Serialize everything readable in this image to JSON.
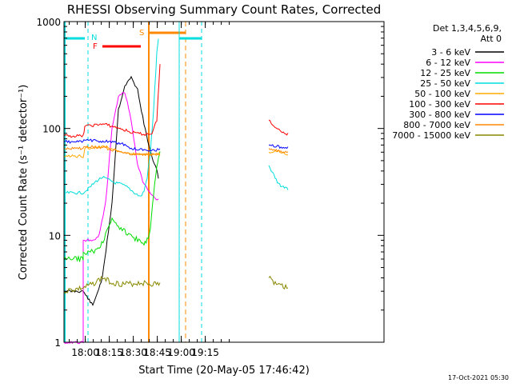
{
  "chart_data": {
    "type": "line",
    "title": "RHESSI Observing Summary Count Rates, Corrected",
    "xlabel": "Start Time (20-May-05 17:46:42)",
    "ylabel": "Corrected Count Rate (s⁻¹ detector⁻¹)",
    "yscale": "log",
    "ylim": [
      1,
      1000
    ],
    "xlim_min": [
      0,
      200
    ],
    "x_tick_labels": [
      "18:00",
      "18:15",
      "18:30",
      "18:45",
      "19:00",
      "19:15"
    ],
    "x_ticks_min": [
      13.3,
      28.3,
      43.3,
      58.3,
      73.3,
      88.3
    ],
    "y_tick_labels": [
      "1",
      "10",
      "100",
      "1000"
    ],
    "y_ticks": [
      1,
      10,
      100,
      1000
    ],
    "grid": false,
    "legend_header": [
      "Det 1,3,4,5,6,9,",
      "Att 0"
    ],
    "legend_position": "right",
    "footer_date": "17-Oct-2021 05:30",
    "annotations": {
      "night_label": "N",
      "flare_label": "F",
      "saa_label": "S"
    },
    "flags": {
      "night_intervals": [
        [
          0,
          15
        ]
      ],
      "flare_interval": [
        24,
        48
      ],
      "attenuator_interval": [
        53,
        76
      ]
    },
    "series": [
      {
        "name": "3 - 6 keV",
        "color": "#000000",
        "points": [
          [
            0,
            3
          ],
          [
            12,
            3
          ],
          [
            18,
            2.2
          ],
          [
            24,
            4
          ],
          [
            30,
            20
          ],
          [
            34,
            150
          ],
          [
            38,
            250
          ],
          [
            42,
            300
          ],
          [
            46,
            230
          ],
          [
            50,
            110
          ],
          [
            54,
            60
          ],
          [
            58,
            40
          ],
          [
            59,
            35
          ]
        ]
      },
      {
        "name": "6 - 12 keV",
        "color": "#ff00ff",
        "points": [
          [
            0,
            1
          ],
          [
            12,
            1
          ],
          [
            12,
            9
          ],
          [
            18,
            9
          ],
          [
            22,
            10
          ],
          [
            26,
            20
          ],
          [
            30,
            100
          ],
          [
            34,
            200
          ],
          [
            38,
            220
          ],
          [
            42,
            120
          ],
          [
            46,
            45
          ],
          [
            50,
            30
          ],
          [
            54,
            25
          ],
          [
            58,
            22
          ],
          [
            59,
            22
          ]
        ]
      },
      {
        "name": "12 - 25 keV",
        "color": "#00dd00",
        "points": [
          [
            0,
            6
          ],
          [
            12,
            6
          ],
          [
            12,
            7
          ],
          [
            18,
            7
          ],
          [
            22,
            7.5
          ],
          [
            26,
            10
          ],
          [
            30,
            14
          ],
          [
            34,
            12
          ],
          [
            38,
            11
          ],
          [
            42,
            10
          ],
          [
            46,
            9
          ],
          [
            50,
            8
          ],
          [
            52,
            9
          ],
          [
            54,
            12
          ],
          [
            56,
            25
          ],
          [
            58,
            45
          ],
          [
            59,
            55
          ],
          [
            60,
            60
          ]
        ]
      },
      {
        "name": "25 - 50 keV",
        "color": "#00dddd",
        "points": [
          [
            0,
            25
          ],
          [
            12,
            25
          ],
          [
            16,
            28
          ],
          [
            20,
            32
          ],
          [
            24,
            35
          ],
          [
            28,
            33
          ],
          [
            32,
            31
          ],
          [
            36,
            30
          ],
          [
            40,
            28
          ],
          [
            44,
            25
          ],
          [
            48,
            23
          ],
          [
            50,
            26
          ],
          [
            52,
            35
          ],
          [
            54,
            60
          ],
          [
            56,
            150
          ],
          [
            58,
            500
          ],
          [
            59,
            700
          ],
          [
            128,
            45
          ],
          [
            132,
            35
          ],
          [
            134,
            30
          ],
          [
            140,
            27
          ]
        ]
      },
      {
        "name": "50 - 100 keV",
        "color": "#ffaa00",
        "points": [
          [
            0,
            55
          ],
          [
            12,
            55
          ],
          [
            13,
            65
          ],
          [
            25,
            68
          ],
          [
            35,
            62
          ],
          [
            42,
            58
          ],
          [
            50,
            58
          ],
          [
            60,
            58
          ],
          [
            128,
            60
          ],
          [
            132,
            62
          ],
          [
            140,
            58
          ]
        ]
      },
      {
        "name": "100 - 300 keV",
        "color": "#ff0000",
        "points": [
          [
            0,
            85
          ],
          [
            12,
            85
          ],
          [
            13,
            105
          ],
          [
            25,
            110
          ],
          [
            35,
            100
          ],
          [
            42,
            92
          ],
          [
            50,
            88
          ],
          [
            55,
            90
          ],
          [
            58,
            120
          ],
          [
            60,
            400
          ],
          [
            128,
            120
          ],
          [
            132,
            100
          ],
          [
            140,
            88
          ]
        ]
      },
      {
        "name": "300 - 800 keV",
        "color": "#0000ff",
        "points": [
          [
            0,
            75
          ],
          [
            12,
            75
          ],
          [
            13,
            78
          ],
          [
            25,
            76
          ],
          [
            35,
            73
          ],
          [
            42,
            65
          ],
          [
            50,
            63
          ],
          [
            60,
            63
          ],
          [
            128,
            70
          ],
          [
            132,
            68
          ],
          [
            140,
            66
          ]
        ]
      },
      {
        "name": "800 - 7000 keV",
        "color": "#ff8800",
        "points": [
          [
            0,
            65
          ],
          [
            12,
            65
          ],
          [
            13,
            68
          ],
          [
            25,
            66
          ],
          [
            35,
            60
          ],
          [
            42,
            58
          ],
          [
            50,
            57
          ],
          [
            60,
            57
          ],
          [
            128,
            65
          ],
          [
            132,
            62
          ],
          [
            140,
            60
          ]
        ]
      },
      {
        "name": "7000 - 15000 keV",
        "color": "#888800",
        "points": [
          [
            0,
            3
          ],
          [
            12,
            3.2
          ],
          [
            18,
            3.5
          ],
          [
            24,
            4
          ],
          [
            30,
            3.6
          ],
          [
            36,
            3.5
          ],
          [
            42,
            3.5
          ],
          [
            48,
            3.6
          ],
          [
            54,
            3.5
          ],
          [
            60,
            3.5
          ],
          [
            128,
            4
          ],
          [
            132,
            3.5
          ],
          [
            140,
            3.2
          ]
        ]
      }
    ]
  }
}
